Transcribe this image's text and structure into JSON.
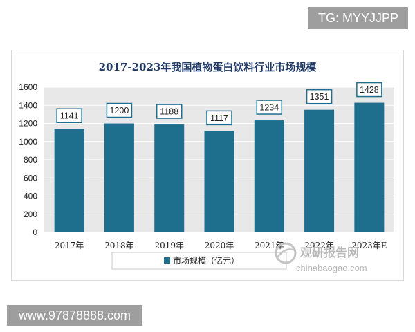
{
  "badges": {
    "top_right": "TG: MYYJJPP",
    "bottom_left": "www.97878888.com"
  },
  "watermark": {
    "cn": "观研报告网",
    "en": "chinabaogao.com"
  },
  "colors": {
    "bar": "#1e6e8e",
    "title": "#1f3864",
    "plot_bg": "#e8e8e8",
    "grid": "#ffffff"
  },
  "chart_data": {
    "type": "bar",
    "title": "2017-2023年我国植物蛋白饮料行业市场规模",
    "categories": [
      "2017年",
      "2018年",
      "2019年",
      "2020年",
      "2021年",
      "2022年",
      "2023年E"
    ],
    "series": [
      {
        "name": "市场规模（亿元）",
        "values": [
          1141,
          1200,
          1188,
          1117,
          1234,
          1351,
          1428
        ]
      }
    ],
    "data_labels": [
      "1141",
      "1200",
      "1188",
      "1117",
      "1234",
      "1351",
      "1428"
    ],
    "ylim": [
      0,
      1600
    ],
    "yticks": [
      "0",
      "200",
      "400",
      "600",
      "800",
      "1000",
      "1200",
      "1400",
      "1600"
    ],
    "xlabel": "",
    "ylabel": "",
    "grid": true,
    "legend_position": "bottom-left"
  }
}
